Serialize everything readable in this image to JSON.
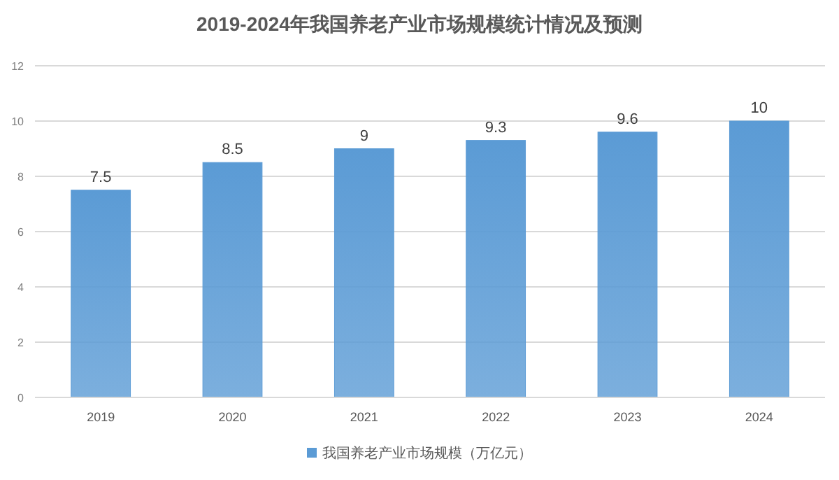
{
  "chart_data": {
    "type": "bar",
    "title": "2019-2024年我国养老产业市场规模统计情况及预测",
    "categories": [
      "2019",
      "2020",
      "2021",
      "2022",
      "2023",
      "2024"
    ],
    "series": [
      {
        "name": "我国养老产业市场规模（万亿元）",
        "color": "#5b9bd5",
        "values": [
          7.5,
          8.5,
          9,
          9.3,
          9.6,
          10
        ]
      }
    ],
    "ylim": [
      0,
      12
    ],
    "yticks": [
      0,
      2,
      4,
      6,
      8,
      10,
      12
    ],
    "grid": "y",
    "legend": "bottom",
    "data_labels": true
  }
}
